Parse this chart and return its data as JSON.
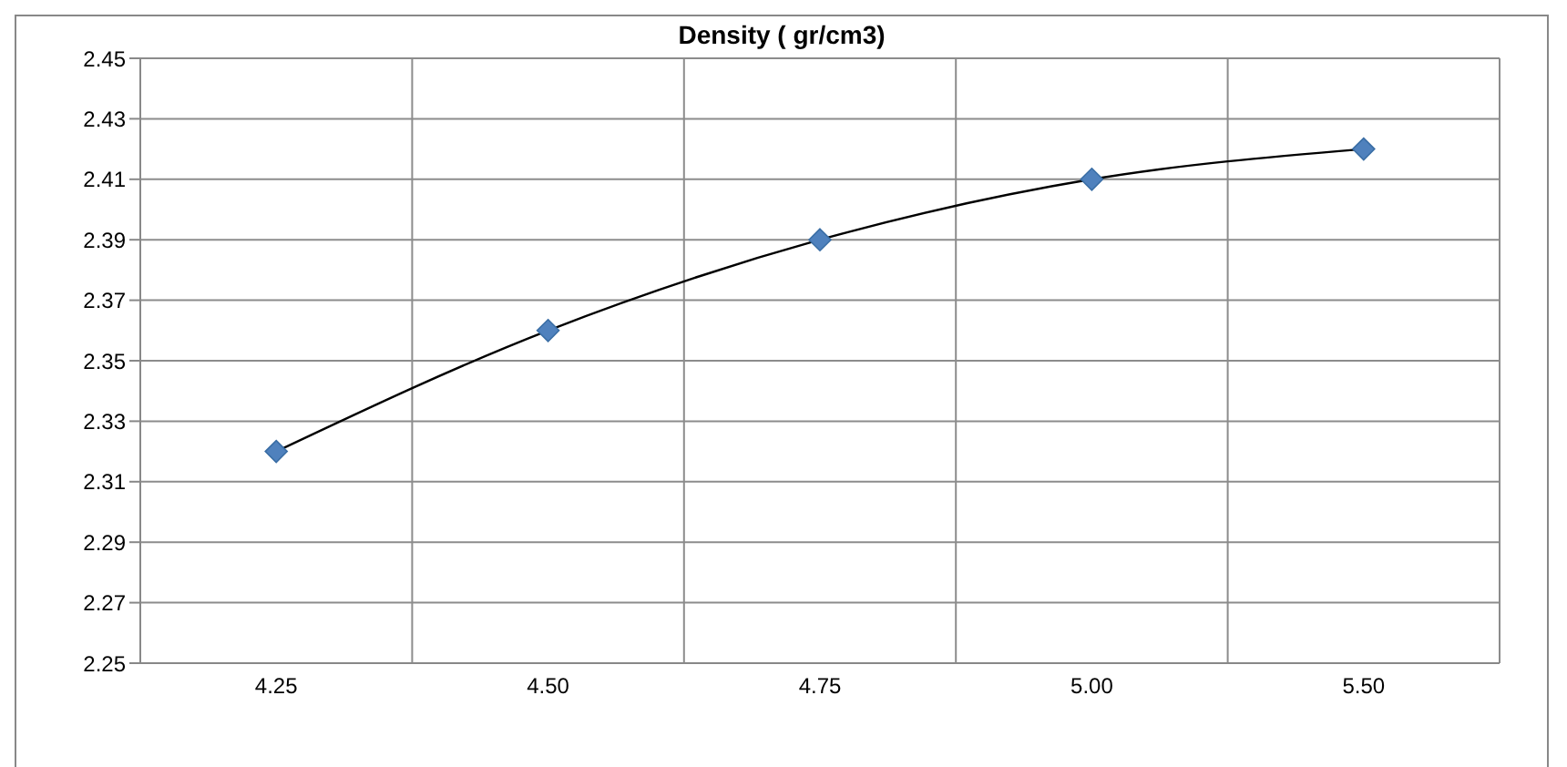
{
  "chart_data": {
    "type": "line",
    "title": "Density ( gr/cm3)",
    "categories": [
      "4.25",
      "4.50",
      "4.75",
      "5.00",
      "5.50"
    ],
    "series": [
      {
        "color": "#000000",
        "colors": [
          "#4f81bd",
          "#4f81bd",
          "#4f81bd",
          "#4f81bd",
          "#4f81bd"
        ],
        "values": [
          2.32,
          2.36,
          2.39,
          2.41,
          2.42
        ]
      }
    ],
    "ylim": [
      2.25,
      2.45
    ],
    "yticks": [
      2.25,
      2.27,
      2.29,
      2.31,
      2.33,
      2.35,
      2.37,
      2.39,
      2.41,
      2.43,
      2.45
    ],
    "grid": true,
    "marker": "diamond",
    "line_style": "solid",
    "legend": false
  }
}
